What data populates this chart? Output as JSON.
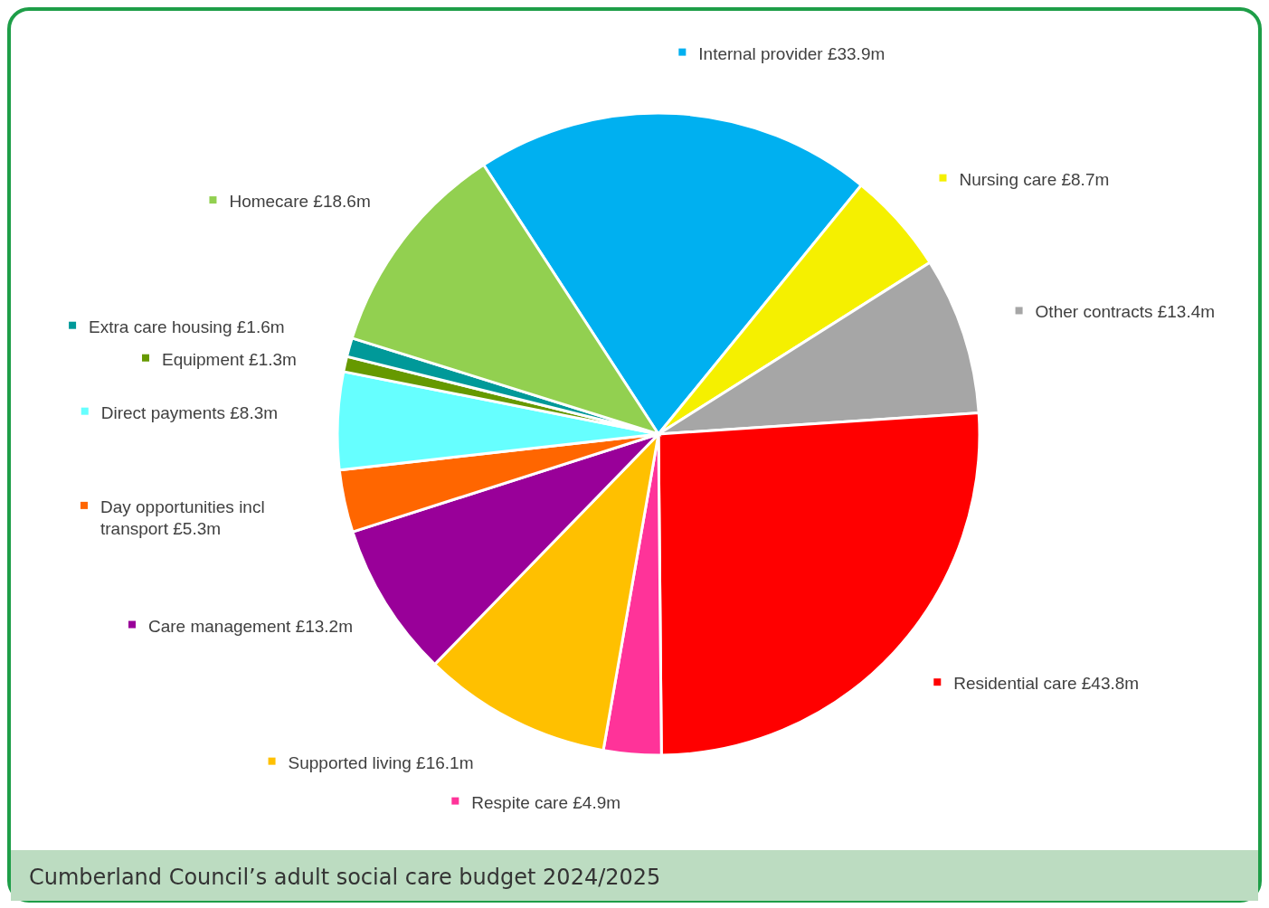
{
  "chart_data": {
    "type": "pie",
    "title": "Cumberland Council’s adult social care budget 2024/2025",
    "categories": [
      "Internal provider",
      "Nursing care",
      "Other contracts",
      "Residential care",
      "Respite care",
      "Supported living",
      "Care management",
      "Day opportunities incl transport",
      "Direct payments",
      "Equipment",
      "Extra care housing",
      "Homecare"
    ],
    "values": [
      33.9,
      8.7,
      13.4,
      43.8,
      4.9,
      16.1,
      13.2,
      5.3,
      8.3,
      1.3,
      1.6,
      18.6
    ],
    "value_labels": [
      "£33.9m",
      "£8.7m",
      "£13.4m",
      "£43.8m",
      "£4.9m",
      "£16.1m",
      "£13.2m",
      "£5.3m",
      "£8.3m",
      "£1.3m",
      "£1.6m",
      "£18.6m"
    ],
    "legend": "right",
    "colors": [
      "#00b0f0",
      "#f5f000",
      "#a6a6a6",
      "#ff0000",
      "#ff3399",
      "#ffc000",
      "#990099",
      "#ff6600",
      "#66ffff",
      "#669900",
      "#009999",
      "#92d050"
    ]
  }
}
